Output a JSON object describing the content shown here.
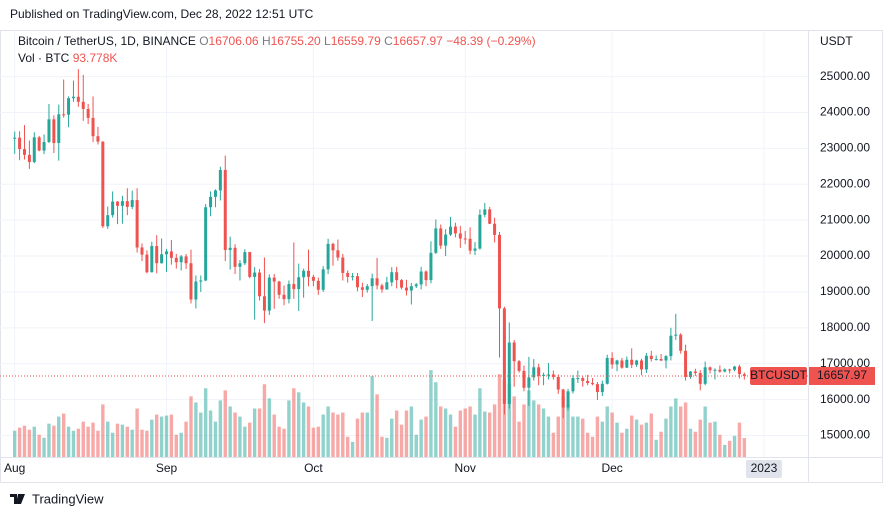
{
  "header": {
    "published": "Published on TradingView.com, Dec 28, 2022 12:51 UTC",
    "brand": "TradingView"
  },
  "chart_data": {
    "type": "candlestick",
    "symbol_line": "Bitcoin / TetherUS, 1D, BINANCE",
    "quote": [
      {
        "label": "O",
        "value": "16706.06"
      },
      {
        "label": "H",
        "value": "16755.20"
      },
      {
        "label": "L",
        "value": "16559.79"
      },
      {
        "label": "C",
        "value": "16657.97"
      }
    ],
    "change": "−48.39 (−0.29%)",
    "volume_name": "Vol · BTC",
    "volume_last": "93.778K",
    "y_unit": "USDT",
    "symbol": "BTCUSDT",
    "up_color": "#26a69a",
    "down_color": "#ef5350",
    "grid": true,
    "xlim": [
      "2022-07-29",
      "2023-01-10"
    ],
    "xticks": [
      {
        "value": "2022-08-01",
        "label": "Aug"
      },
      {
        "value": "2022-09-01",
        "label": "Sep"
      },
      {
        "value": "2022-10-01",
        "label": "Oct"
      },
      {
        "value": "2022-11-01",
        "label": "Nov"
      },
      {
        "value": "2022-12-01",
        "label": "Dec"
      },
      {
        "value": "2023-01-01",
        "label": "2023"
      }
    ],
    "ylim": [
      14400,
      26300
    ],
    "yticks": [
      {
        "value": 15000,
        "label": "15000.00"
      },
      {
        "value": 16000,
        "label": "16000.00"
      },
      {
        "value": 17000,
        "label": "17000.00"
      },
      {
        "value": 18000,
        "label": "18000.00"
      },
      {
        "value": 19000,
        "label": "19000.00"
      },
      {
        "value": 20000,
        "label": "20000.00"
      },
      {
        "value": 21000,
        "label": "21000.00"
      },
      {
        "value": 22000,
        "label": "22000.00"
      },
      {
        "value": 23000,
        "label": "23000.00"
      },
      {
        "value": 24000,
        "label": "24000.00"
      },
      {
        "value": 25000,
        "label": "25000.00"
      }
    ],
    "vlim": [
      0,
      480
    ],
    "x": [
      "2022-08-01",
      "2022-08-02",
      "2022-08-03",
      "2022-08-04",
      "2022-08-05",
      "2022-08-06",
      "2022-08-07",
      "2022-08-08",
      "2022-08-09",
      "2022-08-10",
      "2022-08-11",
      "2022-08-12",
      "2022-08-13",
      "2022-08-14",
      "2022-08-15",
      "2022-08-16",
      "2022-08-17",
      "2022-08-18",
      "2022-08-19",
      "2022-08-20",
      "2022-08-21",
      "2022-08-22",
      "2022-08-23",
      "2022-08-24",
      "2022-08-25",
      "2022-08-26",
      "2022-08-27",
      "2022-08-28",
      "2022-08-29",
      "2022-08-30",
      "2022-08-31",
      "2022-09-01",
      "2022-09-02",
      "2022-09-03",
      "2022-09-04",
      "2022-09-05",
      "2022-09-06",
      "2022-09-07",
      "2022-09-08",
      "2022-09-09",
      "2022-09-10",
      "2022-09-11",
      "2022-09-12",
      "2022-09-13",
      "2022-09-14",
      "2022-09-15",
      "2022-09-16",
      "2022-09-17",
      "2022-09-18",
      "2022-09-19",
      "2022-09-20",
      "2022-09-21",
      "2022-09-22",
      "2022-09-23",
      "2022-09-24",
      "2022-09-25",
      "2022-09-26",
      "2022-09-27",
      "2022-09-28",
      "2022-09-29",
      "2022-09-30",
      "2022-10-01",
      "2022-10-02",
      "2022-10-03",
      "2022-10-04",
      "2022-10-05",
      "2022-10-06",
      "2022-10-07",
      "2022-10-08",
      "2022-10-09",
      "2022-10-10",
      "2022-10-11",
      "2022-10-12",
      "2022-10-13",
      "2022-10-14",
      "2022-10-15",
      "2022-10-16",
      "2022-10-17",
      "2022-10-18",
      "2022-10-19",
      "2022-10-20",
      "2022-10-21",
      "2022-10-22",
      "2022-10-23",
      "2022-10-24",
      "2022-10-25",
      "2022-10-26",
      "2022-10-27",
      "2022-10-28",
      "2022-10-29",
      "2022-10-30",
      "2022-10-31",
      "2022-11-01",
      "2022-11-02",
      "2022-11-03",
      "2022-11-04",
      "2022-11-05",
      "2022-11-06",
      "2022-11-07",
      "2022-11-08",
      "2022-11-09",
      "2022-11-10",
      "2022-11-11",
      "2022-11-12",
      "2022-11-13",
      "2022-11-14",
      "2022-11-15",
      "2022-11-16",
      "2022-11-17",
      "2022-11-18",
      "2022-11-19",
      "2022-11-20",
      "2022-11-21",
      "2022-11-22",
      "2022-11-23",
      "2022-11-24",
      "2022-11-25",
      "2022-11-26",
      "2022-11-27",
      "2022-11-28",
      "2022-11-29",
      "2022-11-30",
      "2022-12-01",
      "2022-12-02",
      "2022-12-03",
      "2022-12-04",
      "2022-12-05",
      "2022-12-06",
      "2022-12-07",
      "2022-12-08",
      "2022-12-09",
      "2022-12-10",
      "2022-12-11",
      "2022-12-12",
      "2022-12-13",
      "2022-12-14",
      "2022-12-15",
      "2022-12-16",
      "2022-12-17",
      "2022-12-18",
      "2022-12-19",
      "2022-12-20",
      "2022-12-21",
      "2022-12-22",
      "2022-12-23",
      "2022-12-24",
      "2022-12-25",
      "2022-12-26",
      "2022-12-27",
      "2022-12-28"
    ],
    "open": [
      23270,
      23300,
      22980,
      22820,
      22620,
      23310,
      22940,
      23180,
      23810,
      23150,
      23950,
      23940,
      24400,
      24440,
      24300,
      24100,
      23850,
      23340,
      23190,
      20830,
      21140,
      21520,
      21400,
      21530,
      21370,
      21560,
      20240,
      20040,
      19550,
      20280,
      19800,
      20050,
      20130,
      19950,
      19830,
      19990,
      19800,
      18790,
      19290,
      19320,
      21360,
      21650,
      21830,
      22400,
      20170,
      20230,
      19700,
      19800,
      20110,
      19420,
      19540,
      18880,
      18480,
      19400,
      19290,
      18920,
      18800,
      19220,
      19080,
      19410,
      19590,
      19420,
      19310,
      19060,
      19630,
      20340,
      20160,
      19960,
      19530,
      19420,
      19440,
      19130,
      19060,
      19160,
      19380,
      19180,
      19070,
      19270,
      19550,
      19330,
      19120,
      19040,
      19160,
      19210,
      19570,
      19330,
      20090,
      20770,
      20290,
      20600,
      20820,
      20630,
      20490,
      20480,
      20150,
      20210,
      21150,
      21300,
      20900,
      20590,
      18540,
      15880,
      17590,
      17070,
      16800,
      16330,
      16620,
      16900,
      16660,
      16690,
      16700,
      16630,
      16280,
      15780,
      16230,
      16600,
      16600,
      16520,
      16460,
      16430,
      16210,
      16440,
      17160,
      16980,
      17090,
      16890,
      17110,
      16970,
      17090,
      16840,
      17220,
      17130,
      17130,
      17090,
      17210,
      17780,
      17810,
      17360,
      16630,
      16780,
      16740,
      16440,
      16900,
      16820,
      16830,
      16780,
      16840,
      16830,
      16920,
      16706.06
    ],
    "high": [
      23470,
      23480,
      23650,
      23220,
      23450,
      23350,
      23390,
      24240,
      23920,
      24220,
      24920,
      24450,
      24890,
      25210,
      25050,
      24240,
      24450,
      23600,
      23200,
      21380,
      21800,
      21530,
      21680,
      21890,
      21820,
      21890,
      20350,
      20160,
      20400,
      20580,
      20490,
      20200,
      20450,
      20060,
      20030,
      20060,
      20180,
      19460,
      19460,
      21450,
      21800,
      21860,
      22490,
      22800,
      20540,
      20330,
      19890,
      20190,
      20120,
      19690,
      19640,
      19960,
      19490,
      19500,
      19310,
      19180,
      19320,
      20380,
      19790,
      19650,
      20180,
      19480,
      19400,
      19720,
      20480,
      20370,
      20460,
      20060,
      19600,
      19530,
      19530,
      19260,
      19220,
      19510,
      19950,
      19230,
      19420,
      19690,
      19700,
      19360,
      19340,
      19250,
      19250,
      19700,
      19600,
      20410,
      21020,
      20880,
      20750,
      21090,
      20930,
      20840,
      20700,
      20800,
      20390,
      21300,
      21480,
      21370,
      21070,
      20670,
      18590,
      18150,
      17660,
      17100,
      16950,
      17190,
      17130,
      17000,
      16750,
      17020,
      16810,
      16700,
      16300,
      16300,
      16680,
      16810,
      16640,
      16690,
      16600,
      16490,
      16530,
      17250,
      17320,
      17110,
      17160,
      17200,
      17430,
      17110,
      17140,
      17300,
      17360,
      17230,
      17270,
      17240,
      18000,
      18390,
      17850,
      17530,
      16800,
      16860,
      16820,
      17060,
      16920,
      16870,
      16950,
      16870,
      16860,
      16940,
      16970,
      16755.2
    ],
    "low": [
      22850,
      22670,
      22690,
      22430,
      22590,
      22920,
      22840,
      23150,
      22870,
      22660,
      23860,
      23590,
      24300,
      24160,
      23770,
      23680,
      23180,
      23110,
      20780,
      20760,
      21070,
      20890,
      20900,
      21140,
      21310,
      20100,
      19860,
      19520,
      19540,
      19520,
      19790,
      19560,
      19760,
      19650,
      19600,
      19640,
      18680,
      18540,
      19000,
      19300,
      21110,
      21360,
      21550,
      19860,
      19620,
      19500,
      19320,
      19750,
      19380,
      18230,
      18760,
      18130,
      18360,
      18530,
      18810,
      18630,
      18680,
      18810,
      18470,
      18840,
      19160,
      19160,
      18920,
      19000,
      19500,
      19730,
      19870,
      19320,
      19260,
      19320,
      19020,
      18860,
      18980,
      18190,
      19070,
      18980,
      19060,
      19160,
      19100,
      19070,
      18900,
      18650,
      19110,
      19070,
      19160,
      19240,
      20060,
      20200,
      20000,
      20560,
      20520,
      20230,
      20330,
      20050,
      20030,
      20180,
      21080,
      20890,
      20380,
      17170,
      15590,
      15750,
      16360,
      16750,
      16230,
      15820,
      16530,
      16400,
      16400,
      16560,
      16560,
      16160,
      15480,
      15700,
      16170,
      16460,
      16360,
      16400,
      16400,
      15990,
      16100,
      16420,
      16860,
      16790,
      16860,
      16880,
      16880,
      16910,
      16680,
      16740,
      17060,
      17090,
      17070,
      16870,
      17090,
      17660,
      17280,
      16530,
      16580,
      16660,
      16260,
      16400,
      16730,
      16560,
      16750,
      16760,
      16730,
      16790,
      16590,
      16559.79
    ],
    "close": [
      23300,
      22980,
      22820,
      22620,
      23310,
      22940,
      23180,
      23810,
      23150,
      23950,
      23940,
      24400,
      24440,
      24300,
      24100,
      23850,
      23340,
      23190,
      20830,
      21140,
      21520,
      21400,
      21530,
      21370,
      21560,
      20240,
      20040,
      19550,
      20280,
      19800,
      20050,
      20130,
      19950,
      19830,
      19990,
      19800,
      18790,
      19290,
      19320,
      21360,
      21650,
      21830,
      22400,
      20170,
      20230,
      19700,
      19800,
      20110,
      19420,
      19540,
      18880,
      18480,
      19400,
      19290,
      18920,
      18800,
      19220,
      19080,
      19410,
      19590,
      19420,
      19310,
      19060,
      19630,
      20340,
      20160,
      19960,
      19530,
      19420,
      19440,
      19130,
      19060,
      19160,
      19380,
      19180,
      19070,
      19270,
      19550,
      19330,
      19120,
      19040,
      19160,
      19210,
      19570,
      19330,
      20090,
      20770,
      20290,
      20600,
      20820,
      20630,
      20490,
      20480,
      20150,
      20210,
      21150,
      21300,
      20900,
      20590,
      18540,
      15880,
      17590,
      17070,
      16800,
      16330,
      16620,
      16900,
      16660,
      16690,
      16700,
      16630,
      16280,
      15780,
      16230,
      16600,
      16600,
      16520,
      16460,
      16430,
      16210,
      16440,
      17160,
      16980,
      17090,
      16890,
      17110,
      16970,
      17090,
      16840,
      17220,
      17130,
      17130,
      17090,
      17210,
      17780,
      17810,
      17360,
      16630,
      16780,
      16740,
      16440,
      16900,
      16820,
      16830,
      16780,
      16840,
      16830,
      16920,
      16710,
      16657.97
    ],
    "volume": [
      130,
      145,
      155,
      135,
      150,
      110,
      95,
      165,
      155,
      200,
      215,
      150,
      130,
      140,
      175,
      150,
      170,
      130,
      260,
      175,
      120,
      165,
      160,
      150,
      135,
      240,
      135,
      130,
      185,
      210,
      200,
      205,
      210,
      110,
      120,
      175,
      300,
      270,
      220,
      340,
      230,
      175,
      280,
      330,
      250,
      220,
      200,
      150,
      170,
      240,
      240,
      360,
      290,
      210,
      150,
      140,
      280,
      340,
      320,
      270,
      250,
      145,
      150,
      210,
      250,
      220,
      210,
      220,
      100,
      75,
      190,
      220,
      220,
      400,
      310,
      100,
      95,
      190,
      230,
      160,
      230,
      250,
      110,
      185,
      200,
      430,
      370,
      250,
      240,
      210,
      150,
      230,
      240,
      250,
      210,
      340,
      225,
      220,
      260,
      410,
      380,
      360,
      300,
      175,
      260,
      330,
      280,
      260,
      240,
      200,
      120,
      200,
      300,
      260,
      200,
      200,
      190,
      120,
      100,
      200,
      175,
      250,
      220,
      170,
      120,
      140,
      205,
      185,
      160,
      170,
      215,
      85,
      125,
      190,
      250,
      290,
      250,
      270,
      140,
      125,
      185,
      250,
      170,
      175,
      110,
      60,
      80,
      105,
      170,
      93.778
    ]
  }
}
